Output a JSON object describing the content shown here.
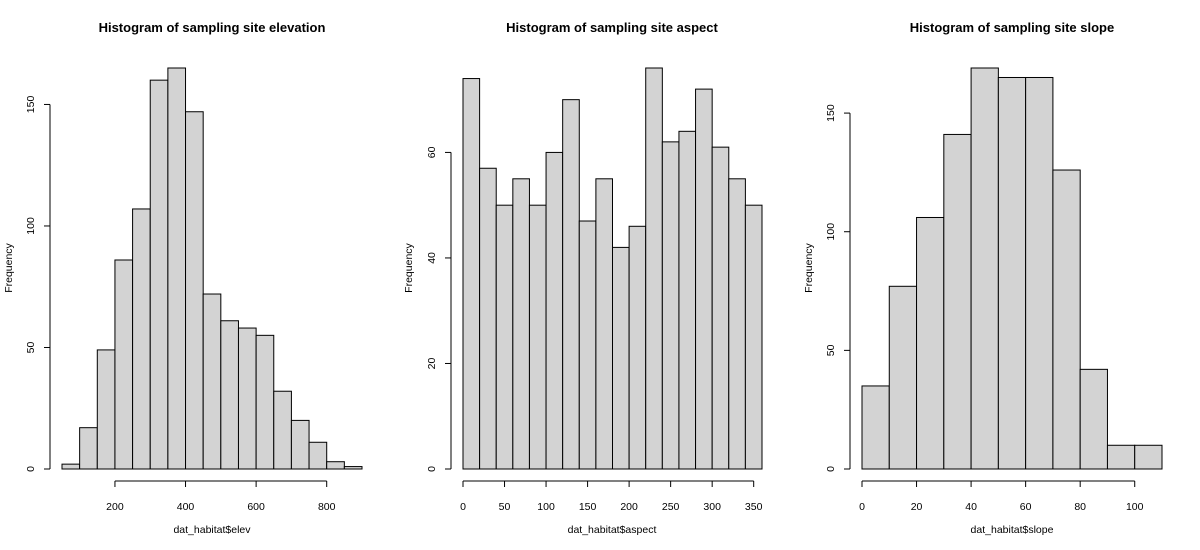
{
  "chart_data": [
    {
      "type": "histogram",
      "title": "Histogram of sampling site elevation",
      "xlabel": "dat_habitat$elev",
      "ylabel": "Frequency",
      "bin_edges": [
        50,
        100,
        150,
        200,
        250,
        300,
        350,
        400,
        450,
        500,
        550,
        600,
        650,
        700,
        750,
        800,
        850,
        900
      ],
      "values": [
        2,
        17,
        49,
        86,
        107,
        160,
        165,
        147,
        72,
        61,
        58,
        55,
        32,
        20,
        11,
        3,
        1
      ],
      "xticks": [
        200,
        400,
        600,
        800
      ],
      "yticks": [
        0,
        50,
        100,
        150
      ],
      "xlim": [
        50,
        900
      ],
      "ylim": [
        0,
        165
      ],
      "grid": false,
      "bar_fill": "#d3d3d3"
    },
    {
      "type": "histogram",
      "title": "Histogram of sampling site aspect",
      "xlabel": "dat_habitat$aspect",
      "ylabel": "Frequency",
      "bin_edges": [
        0,
        20,
        40,
        60,
        80,
        100,
        120,
        140,
        160,
        180,
        200,
        220,
        240,
        260,
        280,
        300,
        320,
        340,
        360
      ],
      "values": [
        74,
        57,
        50,
        55,
        50,
        60,
        70,
        47,
        55,
        42,
        46,
        76,
        62,
        64,
        72,
        61,
        55,
        50
      ],
      "xticks": [
        0,
        50,
        100,
        150,
        200,
        250,
        300,
        350
      ],
      "yticks": [
        0,
        20,
        40,
        60
      ],
      "xlim": [
        0,
        360
      ],
      "ylim": [
        0,
        76
      ],
      "grid": false,
      "bar_fill": "#d3d3d3"
    },
    {
      "type": "histogram",
      "title": "Histogram of sampling site slope",
      "xlabel": "dat_habitat$slope",
      "ylabel": "Frequency",
      "bin_edges": [
        0,
        10,
        20,
        30,
        40,
        50,
        60,
        70,
        80,
        90,
        100,
        110
      ],
      "values": [
        35,
        77,
        106,
        141,
        169,
        165,
        165,
        126,
        42,
        10,
        10
      ],
      "xticks": [
        0,
        20,
        40,
        60,
        80,
        100
      ],
      "yticks": [
        0,
        50,
        100,
        150
      ],
      "xlim": [
        0,
        110
      ],
      "ylim": [
        0,
        169
      ],
      "grid": false,
      "bar_fill": "#d3d3d3"
    }
  ]
}
